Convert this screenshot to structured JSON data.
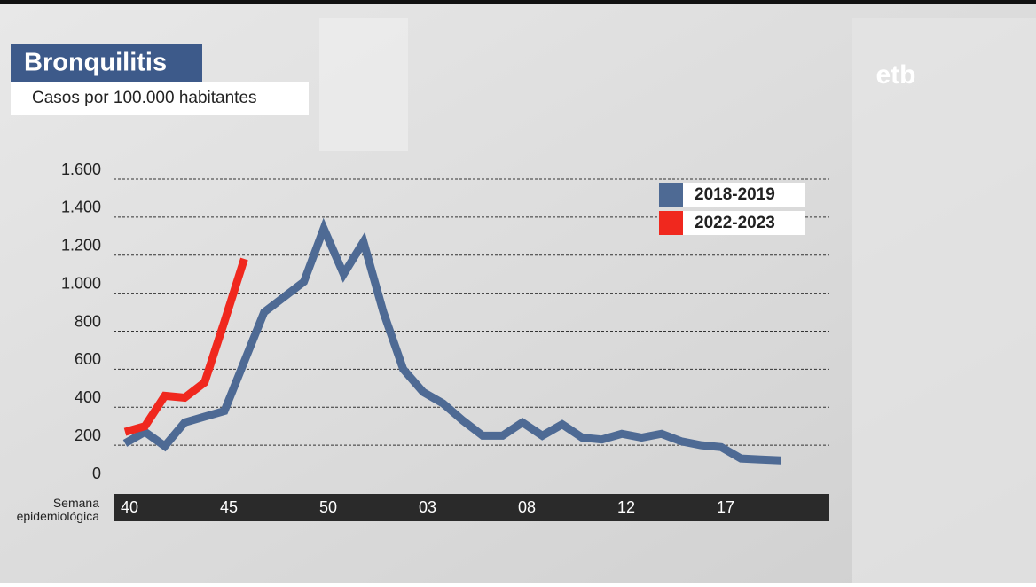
{
  "logo": "etb",
  "chart_data": {
    "type": "line",
    "title": "Bronquilitis",
    "subtitle": "Casos por 100.000 habitantes",
    "x_axis_label": "Semana epidemiológica",
    "categories": [
      "40",
      null,
      null,
      null,
      null,
      "45",
      null,
      null,
      null,
      null,
      "50",
      null,
      null,
      null,
      null,
      "03",
      null,
      null,
      null,
      null,
      "08",
      null,
      null,
      null,
      null,
      "12",
      null,
      null,
      null,
      null,
      "17",
      null,
      null,
      null
    ],
    "series": [
      {
        "name": "2018-2019",
        "color": "#4e6a94",
        "values": [
          210,
          270,
          195,
          320,
          350,
          380,
          640,
          900,
          980,
          1060,
          1340,
          1100,
          1270,
          900,
          600,
          480,
          420,
          330,
          250,
          250,
          320,
          250,
          310,
          240,
          230,
          260,
          240,
          260,
          220,
          200,
          190,
          130,
          125,
          120
        ]
      },
      {
        "name": "2022-2023",
        "color": "#f0281e",
        "values": [
          270,
          300,
          460,
          450,
          530,
          850,
          1180,
          null,
          null,
          null,
          null,
          null,
          null,
          null,
          null,
          null,
          null,
          null,
          null,
          null,
          null,
          null,
          null,
          null,
          null,
          null,
          null,
          null,
          null,
          null,
          null,
          null,
          null,
          null
        ]
      }
    ],
    "ylim": [
      0,
      1600
    ],
    "yticks": [
      0,
      200,
      400,
      600,
      800,
      {
        "value": 1000,
        "label": "1.000"
      },
      {
        "value": 1200,
        "label": "1.200"
      },
      {
        "value": 1400,
        "label": "1.400"
      },
      {
        "value": 1600,
        "label": "1.600"
      }
    ],
    "grid": true,
    "legend": "top-right"
  }
}
